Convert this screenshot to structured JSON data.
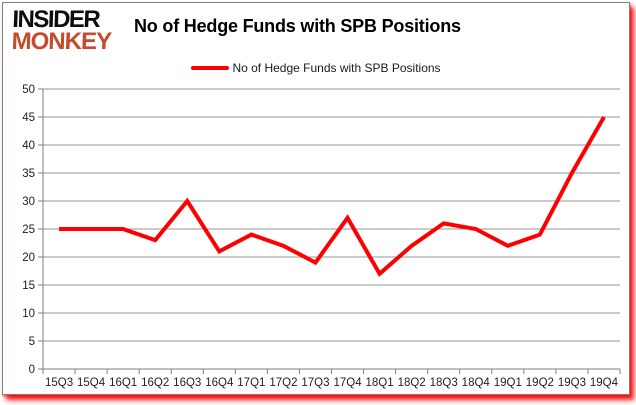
{
  "logo": {
    "line1": "INSIDER",
    "line2": "MONKEY",
    "color1": "#0d0d0d",
    "color2": "#c64a2e"
  },
  "title": "No of Hedge Funds with SPB Positions",
  "legend": {
    "label": "No of Hedge Funds with SPB Positions",
    "color": "#ff0000"
  },
  "chart_data": {
    "type": "line",
    "title": "No of Hedge Funds with SPB Positions",
    "categories": [
      "15Q3",
      "15Q4",
      "16Q1",
      "16Q2",
      "16Q3",
      "16Q4",
      "17Q1",
      "17Q2",
      "17Q3",
      "17Q4",
      "18Q1",
      "18Q2",
      "18Q3",
      "18Q4",
      "19Q1",
      "19Q2",
      "19Q3",
      "19Q4"
    ],
    "series": [
      {
        "name": "No of Hedge Funds with SPB Positions",
        "values": [
          25,
          25,
          25,
          23,
          30,
          21,
          24,
          22,
          19,
          27,
          17,
          22,
          26,
          25,
          22,
          24,
          35,
          45
        ],
        "color": "#ff0000"
      }
    ],
    "xlabel": "",
    "ylabel": "",
    "ylim": [
      0,
      50
    ],
    "ytick_step": 5,
    "grid": true,
    "legend_position": "top",
    "colors": {
      "line": "#ff0000",
      "gridline": "#969696",
      "axis": "#7f7f7f",
      "tick_label": "#1f1f1f"
    }
  }
}
